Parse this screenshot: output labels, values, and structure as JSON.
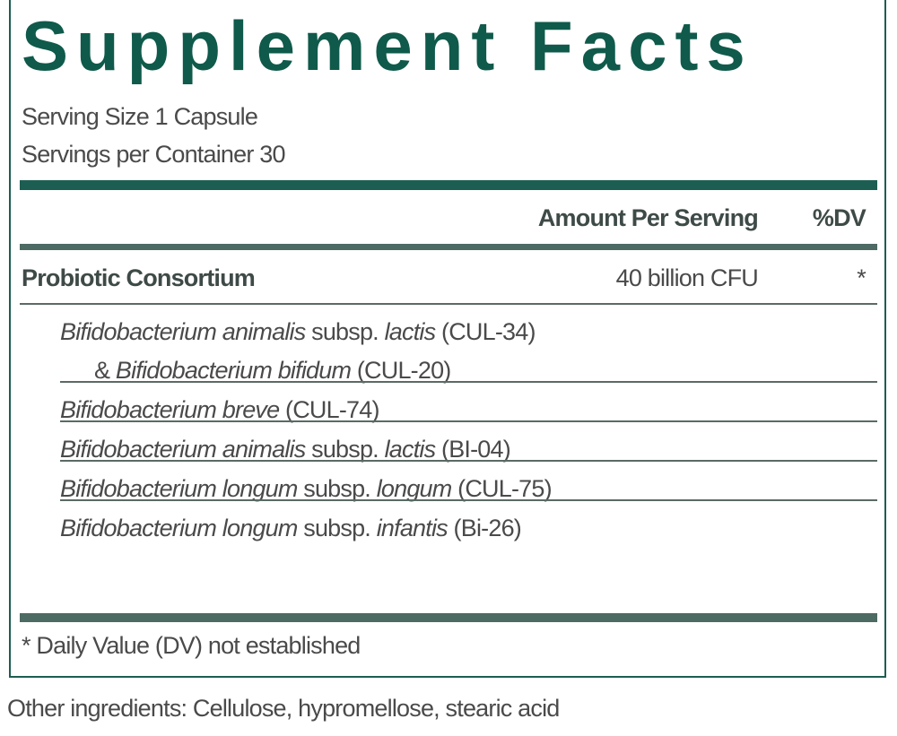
{
  "header": {
    "title": "Supplement Facts",
    "serving_size": "Serving Size 1 Capsule",
    "servings_per_container": "Servings per Container 30"
  },
  "table": {
    "columns": [
      "Amount Per Serving",
      "%DV"
    ],
    "blend": {
      "name": "Probiotic Consortium",
      "amount": "40 billion CFU",
      "dv": "*"
    },
    "ingredients": [
      {
        "lines": [
          [
            {
              "text": "Bifidobacterium animalis",
              "style": "italic"
            },
            {
              "text": " subsp. ",
              "style": "normal"
            },
            {
              "text": "lactis",
              "style": "italic"
            },
            {
              "text": " (CUL-34)",
              "style": "normal"
            }
          ],
          [
            {
              "text": "& ",
              "style": "normal"
            },
            {
              "text": "Bifidobacterium bifidum",
              "style": "italic"
            },
            {
              "text": " (CUL-20)",
              "style": "normal"
            }
          ]
        ]
      },
      {
        "lines": [
          [
            {
              "text": "Bifidobacterium breve",
              "style": "italic"
            },
            {
              "text": " (CUL-74)",
              "style": "normal"
            }
          ]
        ]
      },
      {
        "lines": [
          [
            {
              "text": "Bifidobacterium animalis",
              "style": "italic"
            },
            {
              "text": " subsp. ",
              "style": "normal"
            },
            {
              "text": "lactis",
              "style": "italic"
            },
            {
              "text": " (BI-04)",
              "style": "normal"
            }
          ]
        ]
      },
      {
        "lines": [
          [
            {
              "text": "Bifidobacterium longum",
              "style": "italic"
            },
            {
              "text": " subsp. ",
              "style": "normal"
            },
            {
              "text": "longum",
              "style": "italic"
            },
            {
              "text": " (CUL-75)",
              "style": "normal"
            }
          ]
        ]
      },
      {
        "lines": [
          [
            {
              "text": "Bifidobacterium longum",
              "style": "italic"
            },
            {
              "text": " subsp. ",
              "style": "normal"
            },
            {
              "text": "infantis",
              "style": "italic"
            },
            {
              "text": " (Bi-26)",
              "style": "normal"
            }
          ]
        ]
      }
    ]
  },
  "footnote": "* Daily Value (DV) not established",
  "other_ingredients": "Other ingredients: Cellulose, hypromellose, stearic acid"
}
